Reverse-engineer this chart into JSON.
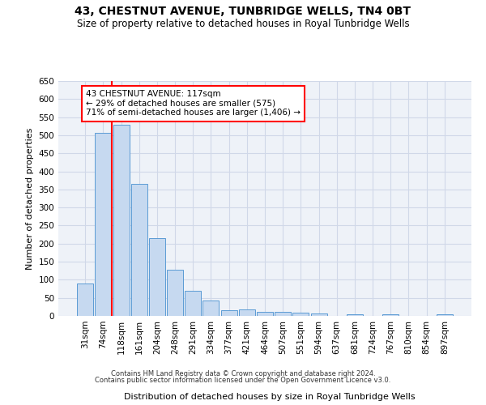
{
  "title": "43, CHESTNUT AVENUE, TUNBRIDGE WELLS, TN4 0BT",
  "subtitle": "Size of property relative to detached houses in Royal Tunbridge Wells",
  "xlabel": "Distribution of detached houses by size in Royal Tunbridge Wells",
  "ylabel": "Number of detached properties",
  "footer_line1": "Contains HM Land Registry data © Crown copyright and database right 2024.",
  "footer_line2": "Contains public sector information licensed under the Open Government Licence v3.0.",
  "bar_labels": [
    "31sqm",
    "74sqm",
    "118sqm",
    "161sqm",
    "204sqm",
    "248sqm",
    "291sqm",
    "334sqm",
    "377sqm",
    "421sqm",
    "464sqm",
    "507sqm",
    "551sqm",
    "594sqm",
    "637sqm",
    "681sqm",
    "724sqm",
    "767sqm",
    "810sqm",
    "854sqm",
    "897sqm"
  ],
  "bar_values": [
    90,
    507,
    530,
    365,
    215,
    127,
    70,
    43,
    16,
    19,
    12,
    11,
    8,
    6,
    0,
    5,
    0,
    4,
    0,
    0,
    4
  ],
  "bar_color": "#c6d9f0",
  "bar_edge_color": "#5b9bd5",
  "grid_color": "#d0d8e8",
  "background_color": "#eef2f8",
  "annotation_line1": "43 CHESTNUT AVENUE: 117sqm",
  "annotation_line2": "← 29% of detached houses are smaller (575)",
  "annotation_line3": "71% of semi-detached houses are larger (1,406) →",
  "red_line_x": 1.5,
  "annotation_box_color": "white",
  "annotation_box_edge_color": "red",
  "ylim": [
    0,
    650
  ],
  "yticks": [
    0,
    50,
    100,
    150,
    200,
    250,
    300,
    350,
    400,
    450,
    500,
    550,
    600,
    650
  ]
}
